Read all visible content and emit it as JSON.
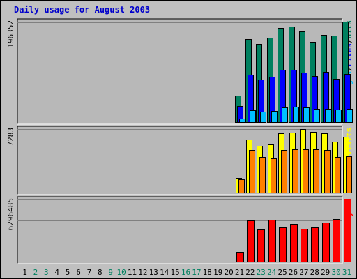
{
  "title": "Daily usage for August 2003",
  "colors": {
    "background": "#c0c0c0",
    "plot_background": "#b8b8b8",
    "title": "#0000cc",
    "hits": "#00805f",
    "files": "#0000ff",
    "pages": "#00c0ff",
    "visits": "#ffff00",
    "sites": "#ff8000",
    "kbytes": "#ff0000",
    "weekend_day": "#00805f",
    "weekday": "#000000"
  },
  "chart_data": [
    {
      "type": "bar",
      "name": "hits-files-pages",
      "axis_max_label": "196352",
      "ylim": [
        0,
        196352
      ],
      "legend": [
        "Hits",
        "/",
        "Files",
        "/",
        "Pages"
      ],
      "categories": [
        "1",
        "2",
        "3",
        "4",
        "5",
        "6",
        "7",
        "8",
        "9",
        "10",
        "11",
        "12",
        "13",
        "14",
        "15",
        "16",
        "17",
        "18",
        "19",
        "20",
        "21",
        "22",
        "23",
        "24",
        "25",
        "26",
        "27",
        "28",
        "29",
        "30",
        "31"
      ],
      "series": [
        {
          "name": "Hits",
          "color_key": "hits",
          "values": [
            0,
            0,
            0,
            0,
            0,
            0,
            0,
            0,
            0,
            0,
            0,
            0,
            0,
            0,
            0,
            0,
            0,
            0,
            0,
            0,
            52000,
            161000,
            151000,
            164000,
            183000,
            186000,
            176000,
            156000,
            169000,
            168000,
            195000
          ]
        },
        {
          "name": "Files",
          "color_key": "files",
          "values": [
            0,
            0,
            0,
            0,
            0,
            0,
            0,
            0,
            0,
            0,
            0,
            0,
            0,
            0,
            0,
            0,
            0,
            0,
            0,
            0,
            31000,
            92000,
            82000,
            88000,
            102000,
            101000,
            96000,
            90000,
            97000,
            84000,
            93000
          ]
        },
        {
          "name": "Pages",
          "color_key": "pages",
          "values": [
            0,
            0,
            0,
            0,
            0,
            0,
            0,
            0,
            0,
            0,
            0,
            0,
            0,
            0,
            0,
            0,
            0,
            0,
            0,
            0,
            7000,
            23000,
            20000,
            22000,
            29000,
            30000,
            28000,
            26000,
            26000,
            25000,
            26000
          ]
        }
      ]
    },
    {
      "type": "bar",
      "name": "visits-sites",
      "axis_max_label": "7283",
      "ylim": [
        0,
        7283
      ],
      "legend": [
        "Visits",
        "/",
        "Sites"
      ],
      "categories": [
        "1",
        "2",
        "3",
        "4",
        "5",
        "6",
        "7",
        "8",
        "9",
        "10",
        "11",
        "12",
        "13",
        "14",
        "15",
        "16",
        "17",
        "18",
        "19",
        "20",
        "21",
        "22",
        "23",
        "24",
        "25",
        "26",
        "27",
        "28",
        "29",
        "30",
        "31"
      ],
      "series": [
        {
          "name": "Visits",
          "color_key": "visits",
          "values": [
            0,
            0,
            0,
            0,
            0,
            0,
            0,
            0,
            0,
            0,
            0,
            0,
            0,
            0,
            0,
            0,
            0,
            0,
            0,
            0,
            1700,
            6000,
            5300,
            5500,
            6700,
            6800,
            7200,
            6900,
            6700,
            5800,
            6300
          ]
        },
        {
          "name": "Sites",
          "color_key": "sites",
          "values": [
            0,
            0,
            0,
            0,
            0,
            0,
            0,
            0,
            0,
            0,
            0,
            0,
            0,
            0,
            0,
            0,
            0,
            0,
            0,
            0,
            1500,
            4800,
            4000,
            3900,
            4800,
            4900,
            4900,
            4900,
            4800,
            4000,
            4100
          ]
        }
      ]
    },
    {
      "type": "bar",
      "name": "kbytes",
      "axis_max_label": "6296485",
      "ylim": [
        0,
        6296485
      ],
      "legend": [
        "KBytes"
      ],
      "categories": [
        "1",
        "2",
        "3",
        "4",
        "5",
        "6",
        "7",
        "8",
        "9",
        "10",
        "11",
        "12",
        "13",
        "14",
        "15",
        "16",
        "17",
        "18",
        "19",
        "20",
        "21",
        "22",
        "23",
        "24",
        "25",
        "26",
        "27",
        "28",
        "29",
        "30",
        "31"
      ],
      "series": [
        {
          "name": "KBytes",
          "color_key": "kbytes",
          "values": [
            0,
            0,
            0,
            0,
            0,
            0,
            0,
            0,
            0,
            0,
            0,
            0,
            0,
            0,
            0,
            0,
            0,
            0,
            0,
            0,
            900000,
            4100000,
            3200000,
            4200000,
            3400000,
            3800000,
            3300000,
            3400000,
            3900000,
            4300000,
            6296485
          ]
        }
      ]
    }
  ],
  "x_axis": {
    "labels": [
      "1",
      "2",
      "3",
      "4",
      "5",
      "6",
      "7",
      "8",
      "9",
      "10",
      "11",
      "12",
      "13",
      "14",
      "15",
      "16",
      "17",
      "18",
      "19",
      "20",
      "21",
      "22",
      "23",
      "24",
      "25",
      "26",
      "27",
      "28",
      "29",
      "30",
      "31"
    ],
    "weekend_days": [
      2,
      3,
      9,
      10,
      16,
      17,
      23,
      24,
      30,
      31
    ]
  }
}
